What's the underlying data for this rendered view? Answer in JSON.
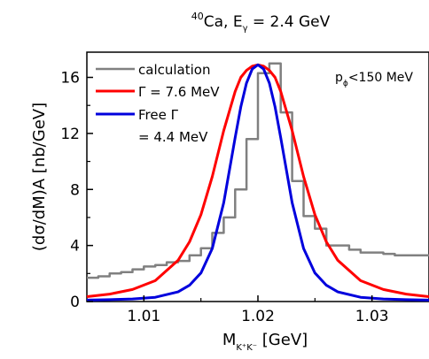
{
  "chart_data": {
    "type": "line",
    "title": {
      "sup": "40",
      "main": "Ca, E",
      "sub": "γ",
      "rest": " = 2.4 GeV"
    },
    "xlabel": {
      "main": "M",
      "sub": "K⁺K⁻",
      "rest": " [GeV]"
    },
    "ylabel": "(dσ/dM)A [nb/GeV]",
    "xlim": [
      1.005,
      1.035
    ],
    "ylim": [
      0,
      17.8
    ],
    "xticks": [
      1.01,
      1.02,
      1.03
    ],
    "xtick_labels": [
      "1.01",
      "1.02",
      "1.03"
    ],
    "yticks": [
      0,
      4,
      8,
      12,
      16
    ],
    "ytick_labels": [
      "0",
      "4",
      "8",
      "12",
      "16"
    ],
    "annotation": {
      "main": "p",
      "sub": "ϕ",
      "rest": "<150 MeV"
    },
    "legend_position": "top-left",
    "series": [
      {
        "name": "calculation",
        "style": "step",
        "color": "#808080",
        "bin_width": 0.001,
        "x_start": 1.005,
        "values": [
          1.7,
          1.8,
          2.0,
          2.1,
          2.3,
          2.5,
          2.6,
          2.8,
          2.9,
          3.3,
          3.8,
          4.9,
          6.0,
          8.0,
          11.6,
          16.3,
          17.0,
          13.5,
          8.6,
          6.1,
          5.2,
          4.0,
          4.0,
          3.7,
          3.5,
          3.5,
          3.4,
          3.3,
          3.3,
          3.3
        ]
      },
      {
        "name": "Γ = 7.6 MeV",
        "style": "line",
        "color": "#ff0000",
        "x": [
          1.005,
          1.007,
          1.009,
          1.011,
          1.013,
          1.014,
          1.015,
          1.016,
          1.017,
          1.018,
          1.0185,
          1.019,
          1.0195,
          1.02,
          1.0205,
          1.021,
          1.0215,
          1.022,
          1.023,
          1.024,
          1.025,
          1.026,
          1.027,
          1.029,
          1.031,
          1.033,
          1.035
        ],
        "y": [
          0.35,
          0.53,
          0.86,
          1.49,
          2.94,
          4.26,
          6.2,
          8.92,
          12.2,
          15.0,
          16.0,
          16.5,
          16.8,
          16.9,
          16.8,
          16.5,
          16.0,
          15.0,
          12.2,
          8.92,
          6.2,
          4.26,
          2.94,
          1.49,
          0.86,
          0.53,
          0.35
        ]
      },
      {
        "name": "Free Γ",
        "name_line2": "= 4.4 MeV",
        "style": "line",
        "color": "#0000dd",
        "x": [
          1.005,
          1.007,
          1.009,
          1.011,
          1.013,
          1.014,
          1.015,
          1.016,
          1.017,
          1.018,
          1.0185,
          1.019,
          1.0195,
          1.02,
          1.0205,
          1.021,
          1.0215,
          1.022,
          1.023,
          1.024,
          1.025,
          1.026,
          1.027,
          1.029,
          1.031,
          1.033,
          1.035
        ],
        "y": [
          0.1,
          0.13,
          0.18,
          0.3,
          0.69,
          1.16,
          2.04,
          3.79,
          7.05,
          11.7,
          13.9,
          15.6,
          16.6,
          16.9,
          16.6,
          15.6,
          13.9,
          11.7,
          7.05,
          3.79,
          2.04,
          1.16,
          0.69,
          0.3,
          0.18,
          0.13,
          0.1
        ]
      }
    ]
  }
}
